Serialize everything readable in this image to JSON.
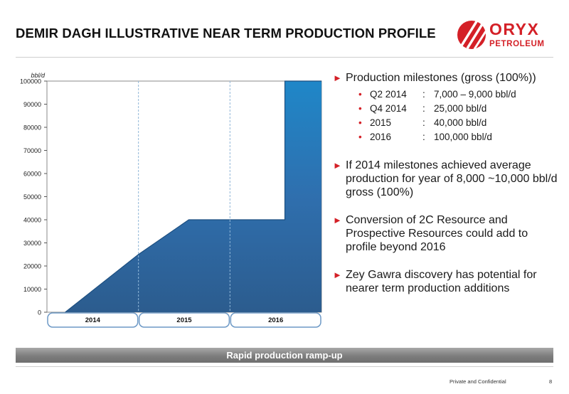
{
  "slide": {
    "title": "DEMIR DAGH ILLUSTRATIVE NEAR TERM PRODUCTION PROFILE",
    "banner": "Rapid production ramp-up",
    "footer": "Private and Confidential",
    "page_number": "8"
  },
  "logo": {
    "line1": "ORYX",
    "line2": "PETROLEUM",
    "color": "#d42027"
  },
  "bullets": [
    {
      "text": "Production milestones (gross (100%))",
      "sub": [
        {
          "label": "Q2 2014",
          "value": "7,000 – 9,000 bbl/d"
        },
        {
          "label": "Q4 2014",
          "value": "25,000 bbl/d"
        },
        {
          "label": "2015",
          "value": "40,000 bbl/d"
        },
        {
          "label": "2016",
          "value": "100,000 bbl/d"
        }
      ]
    },
    {
      "text": "If 2014 milestones achieved average production for year of 8,000 ~10,000 bbl/d gross (100%)"
    },
    {
      "text": "Conversion of 2C Resource and Prospective Resources could add to profile beyond 2016"
    },
    {
      "text": "Zey Gawra discovery has potential for nearer term production additions"
    }
  ],
  "chart_data": {
    "type": "area",
    "ylabel": "bbl/d",
    "ylim": [
      0,
      100000
    ],
    "yticks": [
      0,
      10000,
      20000,
      30000,
      40000,
      50000,
      60000,
      70000,
      80000,
      90000,
      100000
    ],
    "xlim": [
      2014,
      2017
    ],
    "categories": [
      "2014",
      "2015",
      "2016"
    ],
    "x": [
      2014.2,
      2015.0,
      2015.55,
      2016.0,
      2016.6,
      2016.6,
      2017.0
    ],
    "values": [
      0,
      25000,
      40000,
      40000,
      40000,
      100000,
      100000
    ],
    "fill_color": "#2f6fae",
    "grid": false
  }
}
